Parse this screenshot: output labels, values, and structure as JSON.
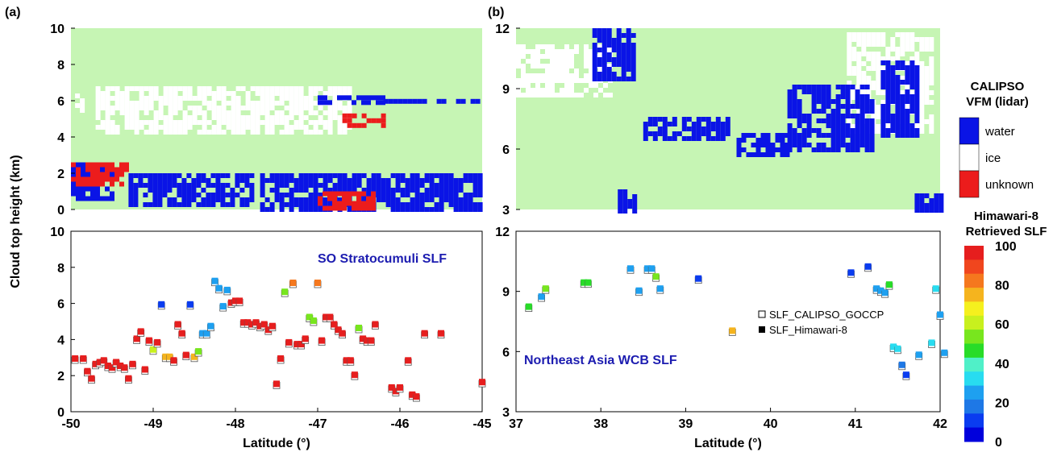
{
  "panel_labels": [
    "(a)",
    "(b)"
  ],
  "shared_ylabel": "Cloud top height (km)",
  "vfm_colorbar": {
    "title_lines": [
      "CALIPSO",
      "VFM (lidar)"
    ],
    "classes": [
      {
        "label": "water",
        "color": "#0a14e6"
      },
      {
        "label": "ice",
        "color": "#ffffff"
      },
      {
        "label": "unknown",
        "color": "#ec1c1c"
      }
    ],
    "background_color": "#c6f5b4"
  },
  "slf_colorbar": {
    "title_lines": [
      "Himawari-8",
      "Retrieved SLF"
    ],
    "ticks": [
      "100",
      "80",
      "60",
      "40",
      "20",
      "0"
    ],
    "colors": [
      "#0000dc",
      "#0a3cf0",
      "#1e78e6",
      "#1ea0f0",
      "#28dcf0",
      "#50f0c8",
      "#28dc28",
      "#78e61e",
      "#c8f01e",
      "#f5f01e",
      "#f5b41e",
      "#f5781e",
      "#f0461e",
      "#e61e1e"
    ]
  },
  "chart_data": [
    {
      "type": "heatmap",
      "panel": "(a) top",
      "description_type": "CALIPSO vertical feature mask",
      "xlim": [
        -50,
        -45
      ],
      "ylim": [
        0,
        10
      ],
      "yticks": [
        "0",
        "2",
        "4",
        "6",
        "8",
        "10"
      ],
      "grid": false,
      "regions": [
        {
          "class": "ice",
          "x": [
            -49.7,
            -46.6
          ],
          "y": [
            4.3,
            6.8
          ]
        },
        {
          "class": "ice",
          "x": [
            -49.95,
            -49.85
          ],
          "y": [
            5.4,
            6.4
          ]
        },
        {
          "class": "water",
          "x": [
            -47.0,
            -46.2
          ],
          "y": [
            5.8,
            6.3
          ]
        },
        {
          "class": "water",
          "x": [
            -46.2,
            -45.0
          ],
          "y": [
            5.9,
            6.1
          ]
        },
        {
          "class": "unknown",
          "x": [
            -46.7,
            -46.2
          ],
          "y": [
            4.6,
            5.3
          ]
        },
        {
          "class": "water",
          "x": [
            -50.0,
            -49.5
          ],
          "y": [
            0.6,
            2.6
          ]
        },
        {
          "class": "unknown",
          "x": [
            -50.0,
            -49.3
          ],
          "y": [
            1.4,
            2.6
          ]
        },
        {
          "class": "water",
          "x": [
            -49.3,
            -47.8
          ],
          "y": [
            0.2,
            2.0
          ]
        },
        {
          "class": "water",
          "x": [
            -47.7,
            -45.0
          ],
          "y": [
            0.1,
            2.0
          ]
        },
        {
          "class": "unknown",
          "x": [
            -47.0,
            -46.3
          ],
          "y": [
            0.1,
            1.0
          ]
        }
      ]
    },
    {
      "type": "heatmap",
      "panel": "(b) top",
      "description_type": "CALIPSO vertical feature mask",
      "xlim": [
        37,
        42
      ],
      "ylim": [
        3,
        12
      ],
      "yticks": [
        "3",
        "6",
        "9",
        "12"
      ],
      "grid": false,
      "regions": [
        {
          "class": "ice",
          "x": [
            37.0,
            38.1
          ],
          "y": [
            8.6,
            11.2
          ]
        },
        {
          "class": "water",
          "x": [
            37.9,
            38.4
          ],
          "y": [
            9.4,
            12.0
          ]
        },
        {
          "class": "ice",
          "x": [
            40.9,
            41.9
          ],
          "y": [
            7.0,
            11.8
          ]
        },
        {
          "class": "water",
          "x": [
            40.2,
            41.2
          ],
          "y": [
            6.0,
            9.2
          ]
        },
        {
          "class": "water",
          "x": [
            41.3,
            41.7
          ],
          "y": [
            6.8,
            10.4
          ]
        },
        {
          "class": "water",
          "x": [
            38.5,
            39.5
          ],
          "y": [
            6.6,
            7.6
          ]
        },
        {
          "class": "water",
          "x": [
            39.6,
            40.2
          ],
          "y": [
            5.8,
            6.8
          ]
        },
        {
          "class": "water",
          "x": [
            41.7,
            42.0
          ],
          "y": [
            3.0,
            3.8
          ]
        },
        {
          "class": "water",
          "x": [
            38.2,
            38.4
          ],
          "y": [
            3.0,
            4.0
          ]
        }
      ]
    },
    {
      "type": "scatter",
      "panel": "(a) bottom",
      "annotation": "SO Stratocumuli SLF",
      "xlim": [
        -50,
        -45
      ],
      "ylim": [
        0,
        10
      ],
      "xticks": [
        "-50",
        "-49",
        "-48",
        "-47",
        "-46",
        "-45"
      ],
      "yticks": [
        "0",
        "2",
        "4",
        "6",
        "8",
        "10"
      ],
      "xlabel": "Latitude (°)",
      "points": [
        [
          -49.95,
          2.9,
          100
        ],
        [
          -49.85,
          2.9,
          100
        ],
        [
          -49.8,
          2.2,
          100
        ],
        [
          -49.75,
          1.8,
          100
        ],
        [
          -49.7,
          2.6,
          100
        ],
        [
          -49.65,
          2.7,
          100
        ],
        [
          -49.6,
          2.8,
          100
        ],
        [
          -49.55,
          2.5,
          100
        ],
        [
          -49.5,
          2.4,
          100
        ],
        [
          -49.45,
          2.7,
          100
        ],
        [
          -49.4,
          2.5,
          100
        ],
        [
          -49.35,
          2.4,
          100
        ],
        [
          -49.3,
          1.8,
          100
        ],
        [
          -49.25,
          2.6,
          100
        ],
        [
          -49.2,
          4.0,
          100
        ],
        [
          -49.15,
          4.4,
          100
        ],
        [
          -49.1,
          2.3,
          100
        ],
        [
          -49.05,
          3.9,
          100
        ],
        [
          -49.0,
          3.4,
          60
        ],
        [
          -48.95,
          3.8,
          100
        ],
        [
          -48.9,
          5.9,
          5
        ],
        [
          -48.85,
          3.0,
          80
        ],
        [
          -48.8,
          3.0,
          80
        ],
        [
          -48.75,
          2.8,
          100
        ],
        [
          -48.7,
          4.8,
          100
        ],
        [
          -48.65,
          4.3,
          100
        ],
        [
          -48.6,
          3.1,
          100
        ],
        [
          -48.55,
          5.9,
          5
        ],
        [
          -48.5,
          3.0,
          80
        ],
        [
          -48.45,
          3.3,
          50
        ],
        [
          -48.4,
          4.3,
          20
        ],
        [
          -48.35,
          4.3,
          20
        ],
        [
          -48.3,
          4.7,
          20
        ],
        [
          -48.25,
          7.2,
          20
        ],
        [
          -48.2,
          6.8,
          20
        ],
        [
          -48.15,
          5.8,
          20
        ],
        [
          -48.1,
          6.7,
          20
        ],
        [
          -48.05,
          6.0,
          100
        ],
        [
          -48.0,
          6.1,
          100
        ],
        [
          -47.95,
          6.1,
          100
        ],
        [
          -47.9,
          4.9,
          100
        ],
        [
          -47.85,
          4.9,
          100
        ],
        [
          -47.8,
          4.8,
          100
        ],
        [
          -47.75,
          4.9,
          100
        ],
        [
          -47.7,
          4.7,
          100
        ],
        [
          -47.65,
          4.8,
          100
        ],
        [
          -47.6,
          4.5,
          100
        ],
        [
          -47.55,
          4.7,
          100
        ],
        [
          -47.5,
          1.5,
          100
        ],
        [
          -47.45,
          2.9,
          100
        ],
        [
          -47.4,
          6.6,
          50
        ],
        [
          -47.35,
          3.8,
          100
        ],
        [
          -47.3,
          7.1,
          85
        ],
        [
          -47.25,
          3.7,
          100
        ],
        [
          -47.2,
          3.7,
          100
        ],
        [
          -47.15,
          4.0,
          100
        ],
        [
          -47.1,
          5.2,
          55
        ],
        [
          -47.05,
          5.0,
          55
        ],
        [
          -47.0,
          7.1,
          85
        ],
        [
          -46.95,
          3.9,
          100
        ],
        [
          -46.9,
          5.2,
          100
        ],
        [
          -46.85,
          5.2,
          100
        ],
        [
          -46.8,
          4.8,
          100
        ],
        [
          -46.75,
          4.5,
          100
        ],
        [
          -46.7,
          4.3,
          100
        ],
        [
          -46.65,
          2.8,
          100
        ],
        [
          -46.6,
          2.8,
          100
        ],
        [
          -46.55,
          2.0,
          100
        ],
        [
          -46.5,
          4.6,
          55
        ],
        [
          -46.45,
          4.0,
          100
        ],
        [
          -46.4,
          3.9,
          100
        ],
        [
          -46.35,
          3.9,
          100
        ],
        [
          -46.3,
          4.8,
          100
        ],
        [
          -46.1,
          1.3,
          100
        ],
        [
          -46.05,
          1.1,
          100
        ],
        [
          -46.0,
          1.3,
          100
        ],
        [
          -45.9,
          2.8,
          100
        ],
        [
          -45.85,
          0.9,
          100
        ],
        [
          -45.8,
          0.8,
          100
        ],
        [
          -45.7,
          4.3,
          100
        ],
        [
          -45.5,
          4.3,
          100
        ],
        [
          -45.0,
          1.6,
          100
        ]
      ]
    },
    {
      "type": "scatter",
      "panel": "(b) bottom",
      "annotation": "Northeast Asia WCB SLF",
      "xlim": [
        37,
        42
      ],
      "ylim": [
        3,
        12
      ],
      "xticks": [
        "37",
        "38",
        "39",
        "40",
        "41",
        "42"
      ],
      "yticks": [
        "3",
        "6",
        "9",
        "12"
      ],
      "xlabel": "Latitude (°)",
      "legend": {
        "position": "center-right",
        "entries": [
          "SLF_CALIPSO_GOCCP",
          "SLF_Himawari-8"
        ]
      },
      "points": [
        [
          37.15,
          8.2,
          45
        ],
        [
          37.3,
          8.7,
          20
        ],
        [
          37.35,
          9.1,
          50
        ],
        [
          37.8,
          9.4,
          45
        ],
        [
          37.85,
          9.4,
          45
        ],
        [
          38.35,
          10.1,
          20
        ],
        [
          38.45,
          9.0,
          20
        ],
        [
          38.55,
          10.1,
          20
        ],
        [
          38.6,
          10.1,
          20
        ],
        [
          38.65,
          9.7,
          55
        ],
        [
          38.7,
          9.1,
          20
        ],
        [
          39.15,
          9.6,
          10
        ],
        [
          39.55,
          7.0,
          80
        ],
        [
          40.95,
          9.9,
          10
        ],
        [
          41.15,
          10.2,
          10
        ],
        [
          41.25,
          9.1,
          20
        ],
        [
          41.3,
          9.0,
          20
        ],
        [
          41.35,
          8.9,
          20
        ],
        [
          41.4,
          9.3,
          45
        ],
        [
          41.45,
          6.2,
          30
        ],
        [
          41.5,
          6.1,
          30
        ],
        [
          41.55,
          5.3,
          15
        ],
        [
          41.6,
          4.8,
          5
        ],
        [
          41.75,
          5.8,
          20
        ],
        [
          41.9,
          6.4,
          30
        ],
        [
          41.95,
          9.1,
          30
        ],
        [
          42.0,
          7.8,
          20
        ],
        [
          42.05,
          5.9,
          20
        ]
      ]
    }
  ]
}
